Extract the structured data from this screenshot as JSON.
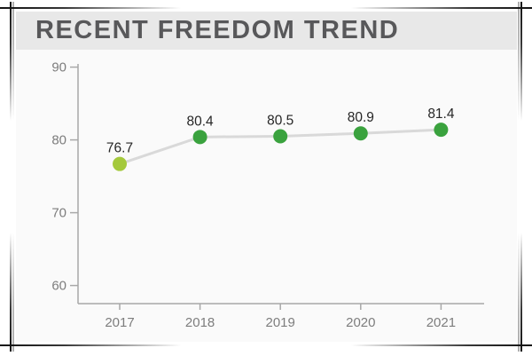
{
  "header": {
    "title": "RECENT FREEDOM TREND"
  },
  "chart_data": {
    "type": "line",
    "title": "RECENT FREEDOM TREND",
    "categories": [
      "2017",
      "2018",
      "2019",
      "2020",
      "2021"
    ],
    "values": [
      76.7,
      80.4,
      80.5,
      80.9,
      81.4
    ],
    "value_labels": [
      "76.7",
      "80.4",
      "80.5",
      "80.9",
      "81.4"
    ],
    "xlabel": "",
    "ylabel": "",
    "ylim": [
      57,
      92
    ],
    "yticks": [
      60,
      70,
      80,
      90
    ],
    "ytick_labels": [
      "60",
      "70",
      "80",
      "90"
    ],
    "grid": false,
    "legend": "none",
    "colors": {
      "trend_line": "#d9d9d9",
      "point_first": "#a4c93c",
      "point": "#3aa23e",
      "axis": "#a8a8a8",
      "axis_label": "#7d7d7d",
      "value_label": "#262626",
      "header_bg": "#e8e8e8",
      "panel_bg": "#fafafa",
      "title_text": "#58585a",
      "frame": "#141414"
    }
  }
}
